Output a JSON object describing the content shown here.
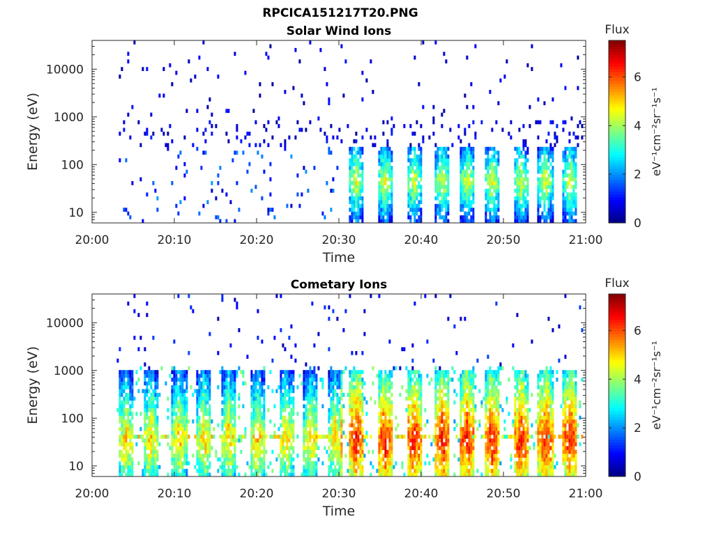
{
  "figure": {
    "filename_title": "RPCICA151217T20.PNG"
  },
  "colors": {
    "colormap": [
      "#00007f",
      "#0000ff",
      "#007fff",
      "#00ffff",
      "#7fff7f",
      "#ffff00",
      "#ff7f00",
      "#ff0000",
      "#7f0000"
    ],
    "axis": "#262626",
    "empty": "#ffffff"
  },
  "chart_data": [
    {
      "type": "heatmap",
      "title": "Solar Wind Ions",
      "xlabel": "Time",
      "ylabel": "Energy (eV)",
      "x_ticks": [
        "20:00",
        "20:10",
        "20:20",
        "20:30",
        "20:40",
        "20:50",
        "21:00"
      ],
      "x_range_min": [
        0,
        60
      ],
      "y_scale": "log",
      "y_ticks": [
        10,
        100,
        1000,
        10000
      ],
      "y_tick_labels": [
        "10",
        "100",
        "1000",
        "10000"
      ],
      "y_range_eV": [
        6,
        40000
      ],
      "colorbar": {
        "label": "Flux",
        "units": "eV⁻¹cm⁻²sr⁻¹s⁻¹",
        "ticks": [
          0,
          2,
          4,
          6
        ],
        "range": [
          0,
          7.5
        ]
      },
      "data_coverage_min": [
        3.0,
        59.5
      ],
      "structure": {
        "high_energy_sparse_counts_eV": [
          1000,
          30000
        ],
        "bursts_after_20_30_center_eV": 50,
        "burst_times_min": [
          32,
          35.5,
          39,
          42.5,
          45.5,
          48.5,
          52,
          55,
          58
        ],
        "peak_flux_range": [
          3,
          5
        ]
      }
    },
    {
      "type": "heatmap",
      "title": "Cometary Ions",
      "xlabel": "Time",
      "ylabel": "Energy (eV)",
      "x_ticks": [
        "20:00",
        "20:10",
        "20:20",
        "20:30",
        "20:40",
        "20:50",
        "21:00"
      ],
      "x_range_min": [
        0,
        60
      ],
      "y_scale": "log",
      "y_ticks": [
        10,
        100,
        1000,
        10000
      ],
      "y_tick_labels": [
        "10",
        "100",
        "1000",
        "10000"
      ],
      "y_range_eV": [
        6,
        40000
      ],
      "colorbar": {
        "label": "Flux",
        "units": "eV⁻¹cm⁻²sr⁻¹s⁻¹",
        "ticks": [
          0,
          2,
          4,
          6
        ],
        "range": [
          0,
          7.5
        ]
      },
      "data_coverage_min": [
        3.0,
        59.5
      ],
      "structure": {
        "periodic_burst_times_min": [
          4,
          7,
          10.5,
          13.5,
          16.5,
          20,
          23.5,
          26.5,
          29.5,
          32,
          35.5,
          39,
          42.5,
          45.5,
          48.5,
          52,
          55,
          58
        ],
        "burst_energy_range_eV": [
          6,
          1000
        ],
        "peak_flux_range": [
          5,
          7
        ]
      }
    }
  ]
}
